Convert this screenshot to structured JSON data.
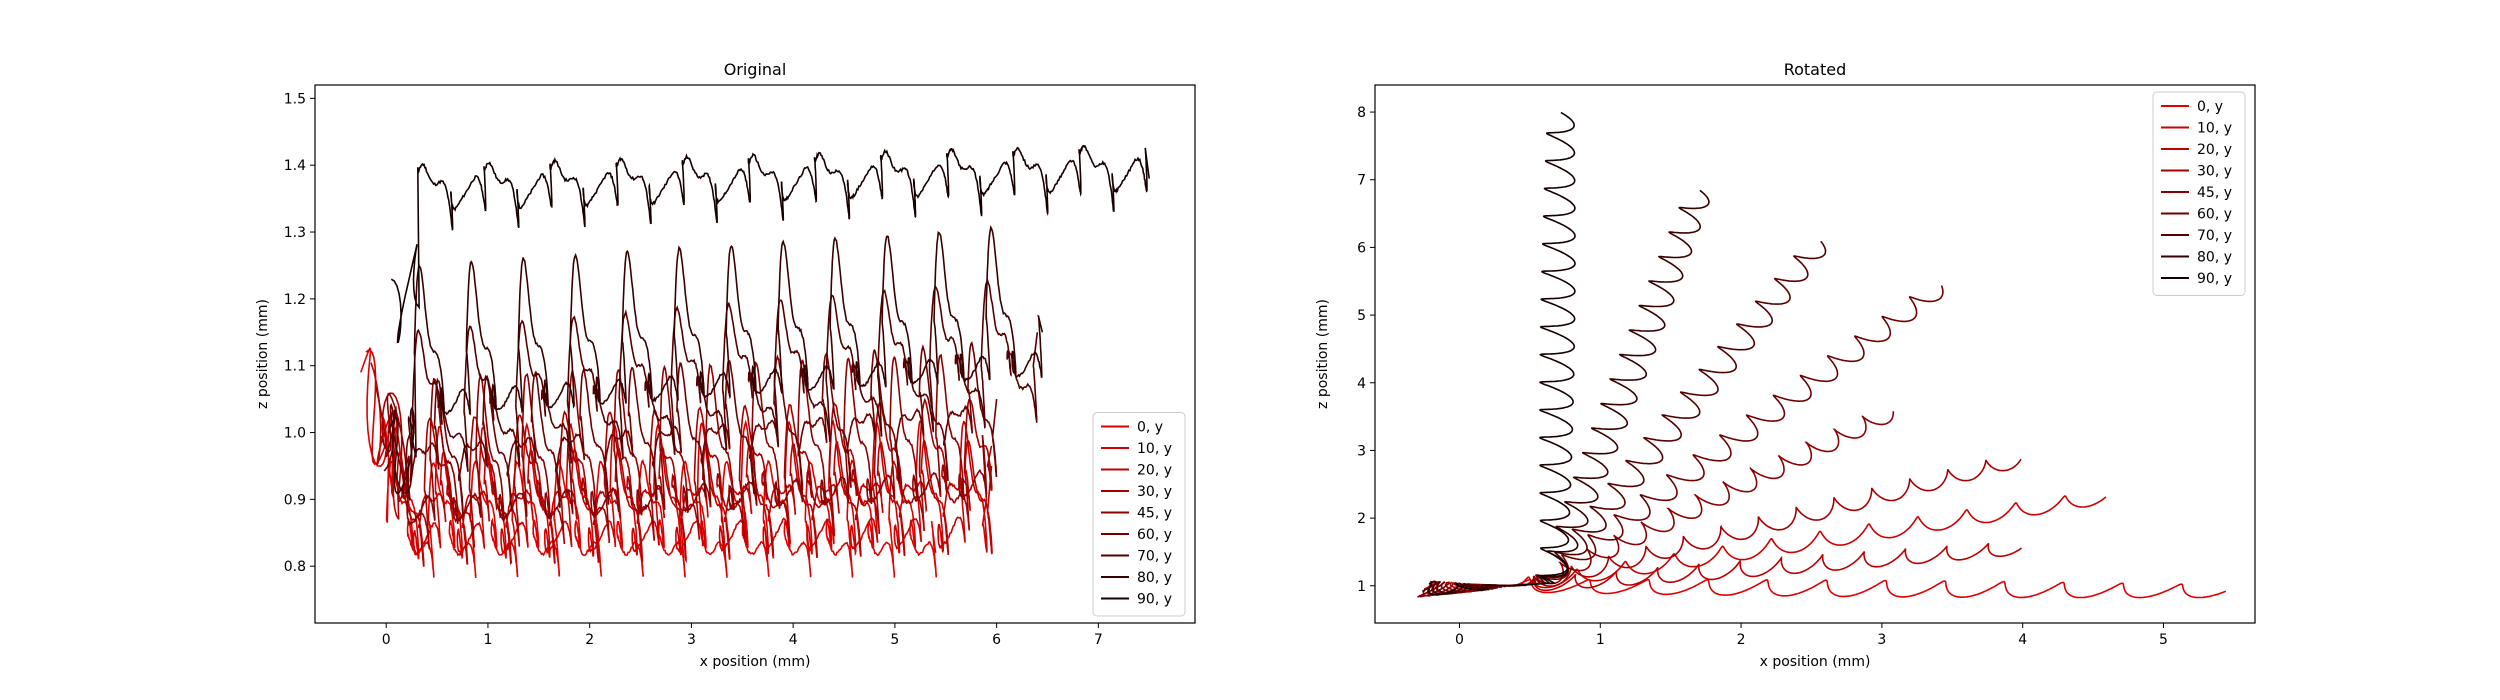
{
  "chart_data": [
    {
      "type": "line",
      "title": "Original",
      "xlabel": "x position (mm)",
      "ylabel": "z position (mm)",
      "xlim": [
        -0.7,
        7.95
      ],
      "ylim": [
        0.715,
        1.52
      ],
      "xticks": [
        "0",
        "1",
        "2",
        "3",
        "4",
        "5",
        "6",
        "7"
      ],
      "yticks": [
        "0.8",
        "0.9",
        "1.0",
        "1.1",
        "1.2",
        "1.3",
        "1.4",
        "1.5"
      ],
      "grid": false,
      "legend_position": "lower-right",
      "series": [
        {
          "name": "0, y",
          "color": "#e00000",
          "trace": {
            "x0": -0.25,
            "z0": 1.09,
            "x1": 5.4,
            "base": 0.79,
            "amp": 0.22,
            "waves": 26,
            "drift": 0.0,
            "end_z": 0.82
          }
        },
        {
          "name": "10, y",
          "color": "#cf0000",
          "trace": {
            "x0": -0.2,
            "z0": 1.07,
            "x1": 5.9,
            "base": 0.8,
            "amp": 0.24,
            "waves": 27,
            "drift": 0.01,
            "end_z": 0.9
          }
        },
        {
          "name": "20, y",
          "color": "#bd0000",
          "trace": {
            "x0": -0.15,
            "z0": 1.05,
            "x1": 5.95,
            "base": 0.81,
            "amp": 0.25,
            "waves": 27,
            "drift": 0.02,
            "end_z": 0.95
          }
        },
        {
          "name": "30, y",
          "color": "#a80000",
          "trace": {
            "x0": -0.1,
            "z0": 1.06,
            "x1": 5.95,
            "base": 0.83,
            "amp": 0.26,
            "waves": 26,
            "drift": 0.03,
            "end_z": 0.98
          }
        },
        {
          "name": "45, y",
          "color": "#8f0000",
          "trace": {
            "x0": -0.05,
            "z0": 1.04,
            "x1": 5.9,
            "base": 0.84,
            "amp": 0.27,
            "waves": 25,
            "drift": 0.04,
            "end_z": 0.9
          }
        },
        {
          "name": "60, y",
          "color": "#700000",
          "trace": {
            "x0": -0.02,
            "z0": 1.0,
            "x1": 6.0,
            "base": 0.88,
            "amp": 0.28,
            "waves": 24,
            "drift": 0.06,
            "end_z": 1.05
          }
        },
        {
          "name": "70, y",
          "color": "#550000",
          "trace": {
            "x0": 0.0,
            "z0": 0.98,
            "x1": 6.4,
            "base": 0.94,
            "amp": 0.3,
            "waves": 24,
            "drift": 0.08,
            "end_z": 1.15
          }
        },
        {
          "name": "80, y",
          "color": "#380000",
          "trace": {
            "x0": 0.02,
            "z0": 0.96,
            "x1": 6.45,
            "base": 1.0,
            "amp": 0.28,
            "waves": 24,
            "drift": 0.06,
            "end_z": 1.15
          }
        },
        {
          "name": "90, y",
          "color": "#150000",
          "trace": {
            "x0": 0.05,
            "z0": 1.17,
            "x1": 7.5,
            "base": 1.32,
            "amp": 0.13,
            "waves": 22,
            "drift": 0.03,
            "end_z": 1.38
          }
        }
      ]
    },
    {
      "type": "line",
      "title": "Rotated",
      "xlabel": "x position (mm)",
      "ylabel": "z position (mm)",
      "xlim": [
        -0.6,
        5.65
      ],
      "ylim": [
        0.45,
        8.4
      ],
      "xticks": [
        "0",
        "1",
        "2",
        "3",
        "4",
        "5"
      ],
      "yticks": [
        "1",
        "2",
        "3",
        "4",
        "5",
        "6",
        "7",
        "8"
      ],
      "grid": false,
      "legend_position": "upper-right",
      "series": [
        {
          "name": "0, y",
          "color": "#e00000",
          "trace": {
            "end_x": 5.4,
            "end_z": 0.92,
            "waves": 12
          }
        },
        {
          "name": "10, y",
          "color": "#cf0000",
          "trace": {
            "end_x": 4.55,
            "end_z": 2.3,
            "waves": 12
          }
        },
        {
          "name": "20, y",
          "color": "#bd0000",
          "trace": {
            "end_x": 3.95,
            "end_z": 1.55,
            "waves": 12
          }
        },
        {
          "name": "30, y",
          "color": "#a80000",
          "trace": {
            "end_x": 3.95,
            "end_z": 2.85,
            "waves": 13
          }
        },
        {
          "name": "45, y",
          "color": "#8f0000",
          "trace": {
            "end_x": 3.05,
            "end_z": 3.55,
            "waves": 13
          }
        },
        {
          "name": "60, y",
          "color": "#700000",
          "trace": {
            "end_x": 3.4,
            "end_z": 5.4,
            "waves": 15
          }
        },
        {
          "name": "70, y",
          "color": "#550000",
          "trace": {
            "end_x": 2.55,
            "end_z": 6.05,
            "waves": 15
          }
        },
        {
          "name": "80, y",
          "color": "#380000",
          "trace": {
            "end_x": 1.7,
            "end_z": 6.8,
            "waves": 16
          }
        },
        {
          "name": "90, y",
          "color": "#150000",
          "trace": {
            "end_x": 0.72,
            "end_z": 7.95,
            "waves": 17
          }
        }
      ]
    }
  ]
}
